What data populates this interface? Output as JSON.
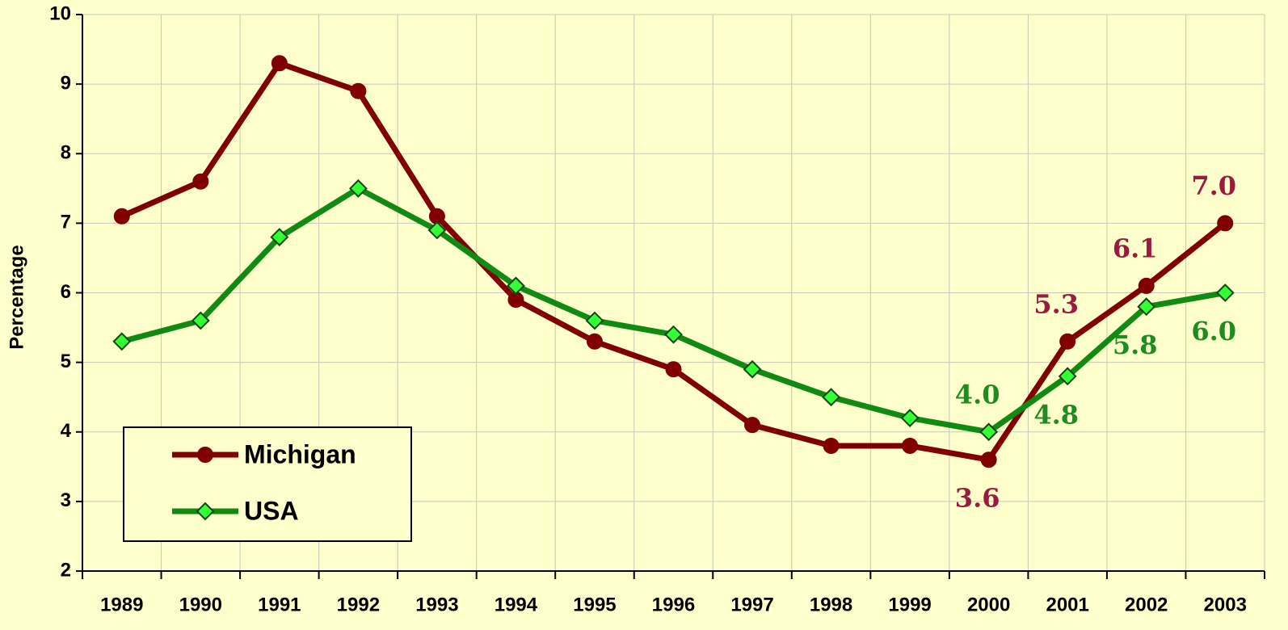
{
  "chart_data": {
    "type": "line",
    "y_label": "Percentage",
    "categories": [
      "1989",
      "1990",
      "1991",
      "1992",
      "1993",
      "1994",
      "1995",
      "1996",
      "1997",
      "1998",
      "1999",
      "2000",
      "2001",
      "2002",
      "2003"
    ],
    "series": [
      {
        "name": "Michigan",
        "color": "#800000",
        "label_color": "#9b1b3f",
        "marker": "circle",
        "values": [
          7.1,
          7.6,
          9.3,
          8.9,
          7.1,
          5.9,
          5.3,
          4.9,
          4.1,
          3.8,
          3.8,
          3.6,
          5.3,
          6.1,
          7.0
        ],
        "value_labels": [
          null,
          null,
          null,
          null,
          null,
          null,
          null,
          null,
          null,
          null,
          null,
          "3.6",
          "5.3",
          "6.1",
          "7.0"
        ]
      },
      {
        "name": "USA",
        "color": "#108a10",
        "label_color": "#1e8c1e",
        "marker": "diamond",
        "marker_fill": "#33ff33",
        "values": [
          5.3,
          5.6,
          6.8,
          7.5,
          6.9,
          6.1,
          5.6,
          5.4,
          4.9,
          4.5,
          4.2,
          4.0,
          4.8,
          5.8,
          6.0
        ],
        "value_labels": [
          null,
          null,
          null,
          null,
          null,
          null,
          null,
          null,
          null,
          null,
          null,
          "4.0",
          "4.8",
          "5.8",
          "6.0"
        ]
      }
    ],
    "ylim": [
      2,
      10
    ],
    "yticks": [
      2,
      3,
      4,
      5,
      6,
      7,
      8,
      9,
      10
    ],
    "grid": true
  }
}
